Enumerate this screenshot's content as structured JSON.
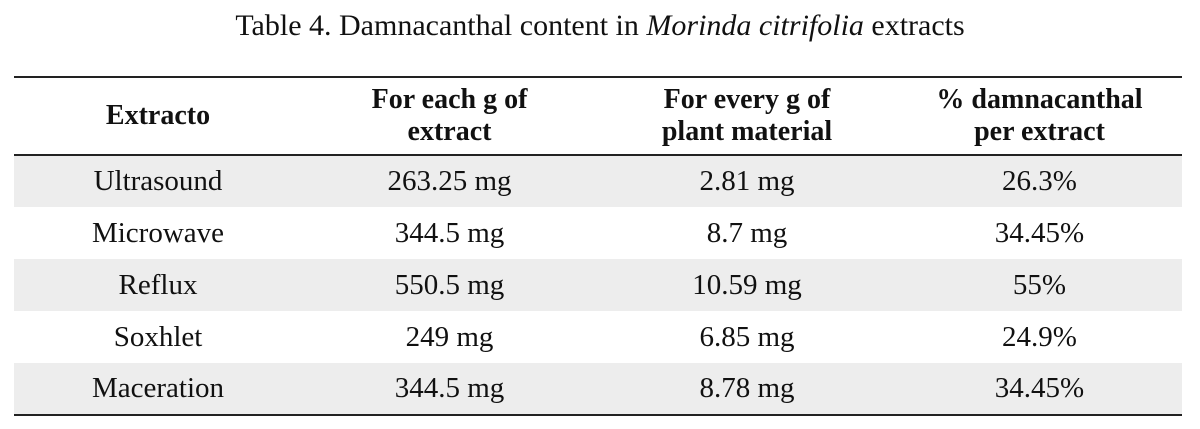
{
  "caption": {
    "prefix": "Table 4. Damnacanthal content in ",
    "species": "Morinda citrifolia",
    "suffix": " extracts"
  },
  "table": {
    "headers": [
      {
        "line1": "Extracto",
        "line2": ""
      },
      {
        "line1": "For each g of",
        "line2": "extract"
      },
      {
        "line1": "For every g of",
        "line2": "plant material"
      },
      {
        "line1": "% damnacanthal",
        "line2": "per extract"
      }
    ],
    "rows": [
      [
        "Ultrasound",
        "263.25 mg",
        "2.81 mg",
        "26.3%"
      ],
      [
        "Microwave",
        "344.5 mg",
        "8.7 mg",
        "34.45%"
      ],
      [
        "Reflux",
        "550.5 mg",
        "10.59 mg",
        "55%"
      ],
      [
        "Soxhlet",
        "249 mg",
        "6.85 mg",
        "24.9%"
      ],
      [
        "Maceration",
        "344.5 mg",
        "8.78 mg",
        "34.45%"
      ]
    ]
  },
  "colors": {
    "shaded_row": "#ededed",
    "rule": "#222222",
    "text": "#111111"
  }
}
